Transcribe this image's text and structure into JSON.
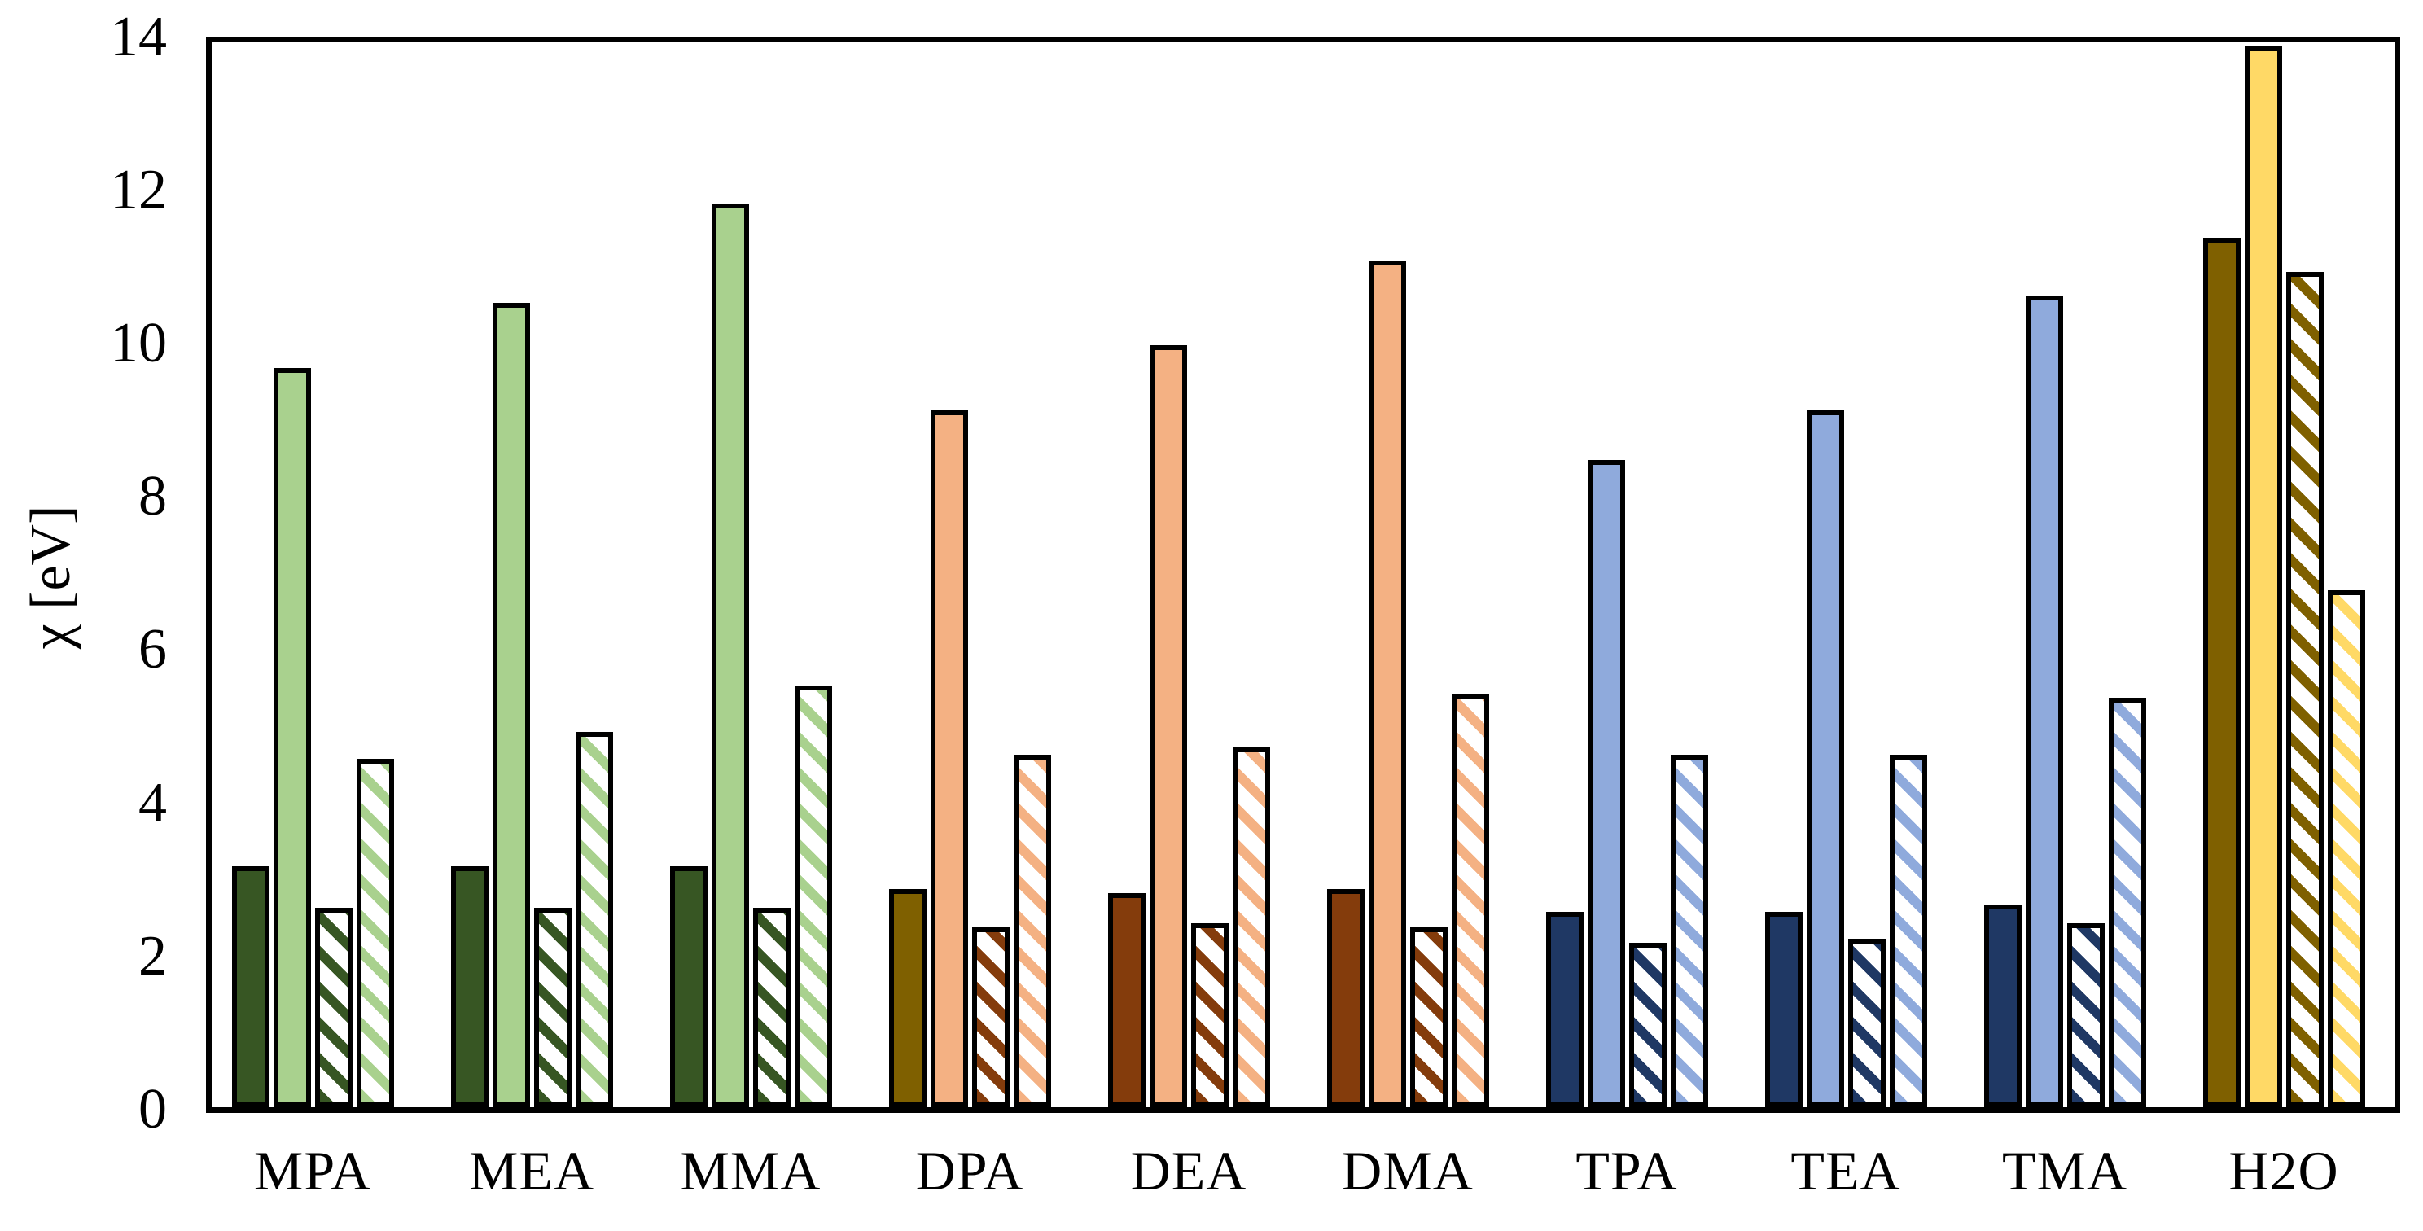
{
  "chart_data": {
    "type": "bar",
    "title": "",
    "xlabel": "",
    "ylabel": "χ [eV]",
    "ylim": [
      0,
      14
    ],
    "yticks": [
      0,
      2,
      4,
      6,
      8,
      10,
      12,
      14
    ],
    "grid": false,
    "legend_position": "none",
    "axis_color": "#000000",
    "background_color": "#ffffff",
    "categories": [
      "MPA",
      "MEA",
      "MMA",
      "DPA",
      "DEA",
      "DMA",
      "TPA",
      "TEA",
      "TMA",
      "H2O"
    ],
    "series": [
      {
        "name": "dark-solid",
        "style": "solid",
        "shade": "dark",
        "values": [
          3.15,
          3.15,
          3.15,
          2.85,
          2.8,
          2.85,
          2.55,
          2.55,
          2.65,
          11.35
        ]
      },
      {
        "name": "light-solid",
        "style": "solid",
        "shade": "light",
        "values": [
          9.65,
          10.5,
          11.8,
          9.1,
          9.95,
          11.05,
          8.45,
          9.1,
          10.6,
          13.85
        ]
      },
      {
        "name": "dark-hatched",
        "style": "hatched",
        "shade": "dark",
        "values": [
          2.6,
          2.6,
          2.6,
          2.35,
          2.4,
          2.35,
          2.15,
          2.2,
          2.4,
          10.9
        ]
      },
      {
        "name": "light-hatched",
        "style": "hatched",
        "shade": "light",
        "values": [
          4.55,
          4.9,
          5.5,
          4.6,
          4.7,
          5.4,
          4.6,
          4.6,
          5.35,
          6.75
        ]
      }
    ],
    "category_colors": [
      {
        "dark": "#375623",
        "light": "#A9D18E",
        "hatch_dark": "#375623",
        "hatch_light": "#A9D18E"
      },
      {
        "dark": "#375623",
        "light": "#A9D18E",
        "hatch_dark": "#375623",
        "hatch_light": "#A9D18E"
      },
      {
        "dark": "#375623",
        "light": "#A9D18E",
        "hatch_dark": "#375623",
        "hatch_light": "#A9D18E"
      },
      {
        "dark": "#7F6000",
        "light": "#F4B183",
        "hatch_dark": "#843C0C",
        "hatch_light": "#F4B183"
      },
      {
        "dark": "#843C0C",
        "light": "#F4B183",
        "hatch_dark": "#843C0C",
        "hatch_light": "#F4B183"
      },
      {
        "dark": "#843C0C",
        "light": "#F4B183",
        "hatch_dark": "#843C0C",
        "hatch_light": "#F4B183"
      },
      {
        "dark": "#1F3864",
        "light": "#8FAADC",
        "hatch_dark": "#1F3864",
        "hatch_light": "#8FAADC"
      },
      {
        "dark": "#1F3864",
        "light": "#8FAADC",
        "hatch_dark": "#1F3864",
        "hatch_light": "#8FAADC"
      },
      {
        "dark": "#1F3864",
        "light": "#8FAADC",
        "hatch_dark": "#1F3864",
        "hatch_light": "#8FAADC"
      },
      {
        "dark": "#7F6000",
        "light": "#FFD966",
        "hatch_dark": "#7F6000",
        "hatch_light": "#FFD966"
      }
    ]
  }
}
